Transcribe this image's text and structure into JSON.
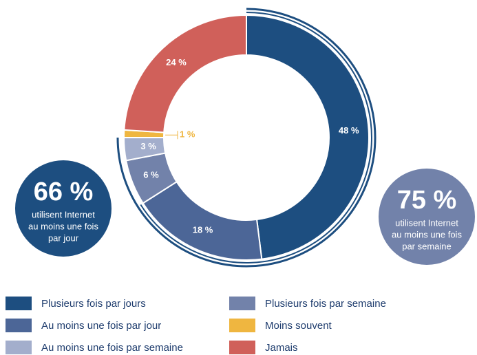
{
  "chart_data": {
    "type": "donut",
    "categories": [
      "Plusieurs fois par jours",
      "Au moins une fois par jour",
      "Plusieurs fois par semaine",
      "Au moins une fois par semaine",
      "Moins souvent",
      "Jamais"
    ],
    "values": [
      48,
      18,
      6,
      3,
      1,
      24
    ],
    "value_labels": [
      "48 %",
      "18 %",
      "6 %",
      "3 %",
      "1 %",
      "24 %"
    ],
    "colors": [
      "#1d4e80",
      "#4c6697",
      "#7282aa",
      "#a3aecc",
      "#efb640",
      "#d0605a"
    ],
    "annotations": [
      {
        "value": "66 %",
        "lines": [
          "utilisent Internet",
          "au moins une fois",
          "par jour"
        ],
        "color": "#1d4e80"
      },
      {
        "value": "75 %",
        "lines": [
          "utilisent Internet",
          "au moins une fois",
          "par semaine"
        ],
        "color": "#7282aa"
      }
    ]
  }
}
